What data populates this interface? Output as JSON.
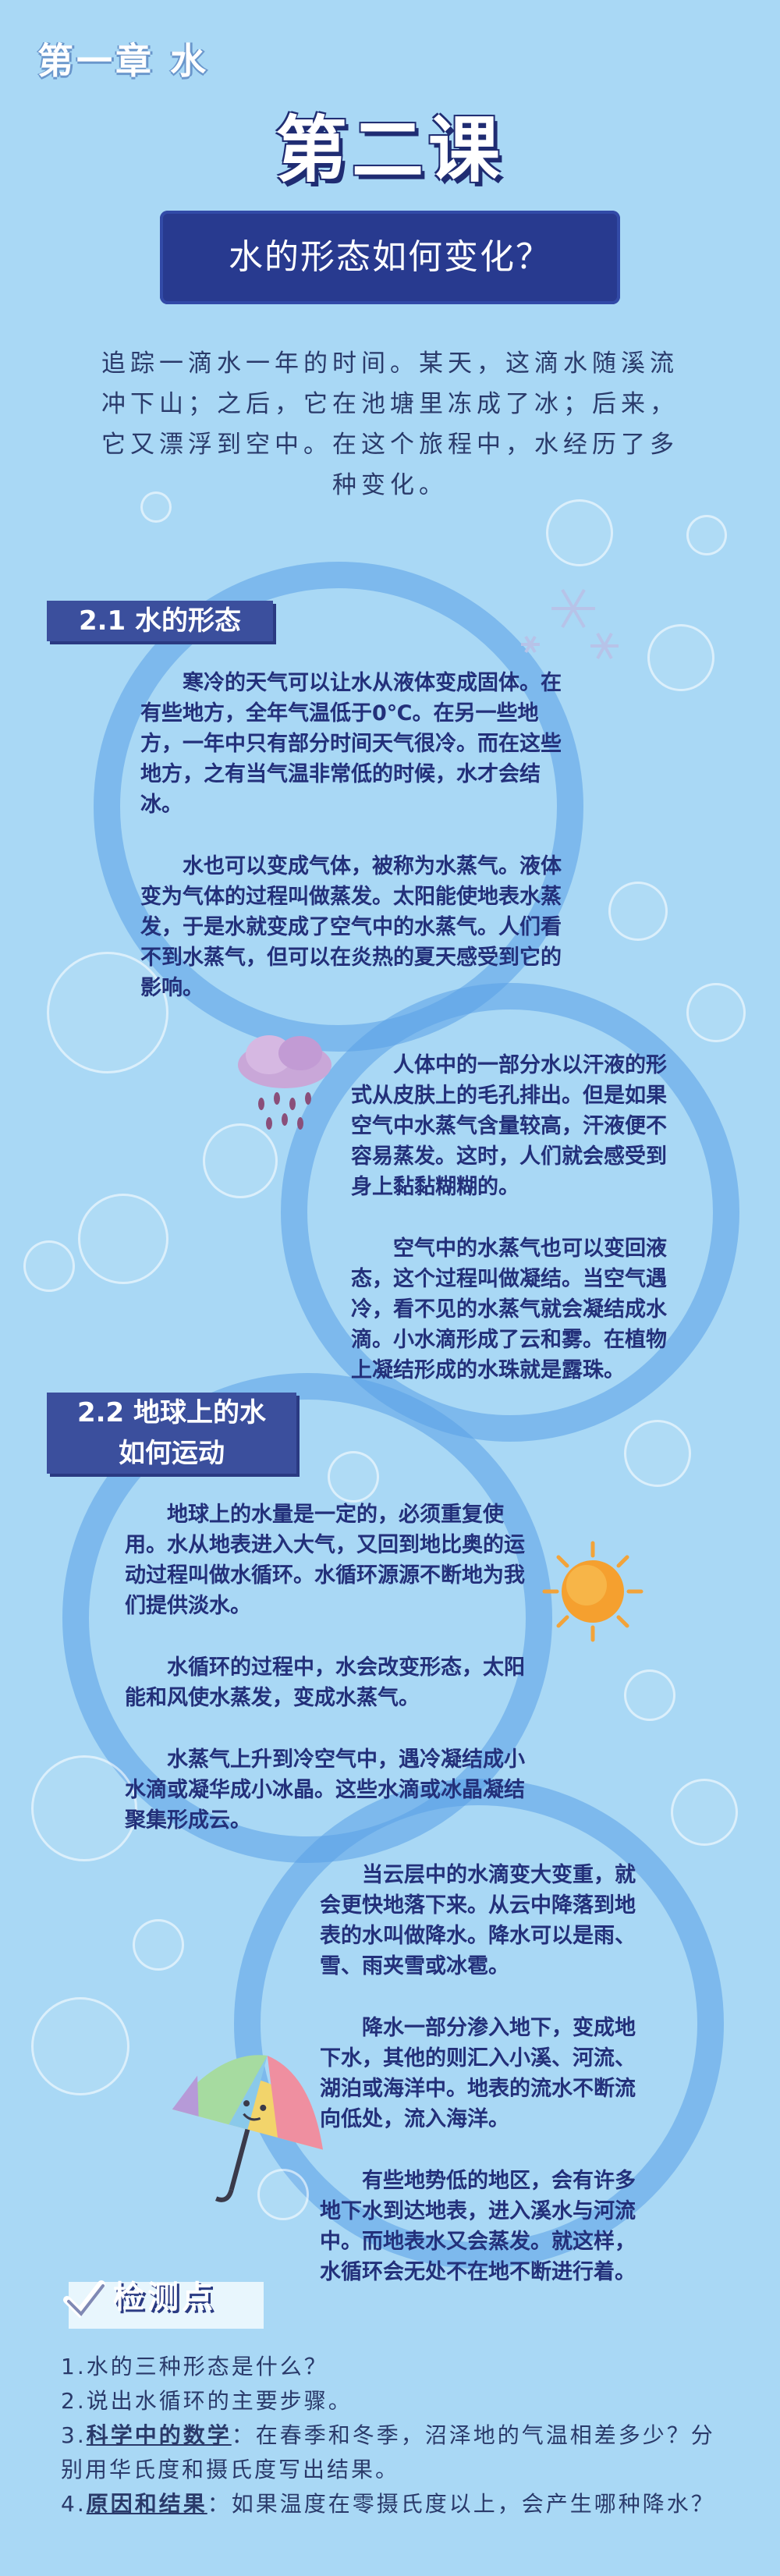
{
  "header": {
    "chapter": "第一章 水",
    "lesson": "第二课",
    "title": "水的形态如何变化？"
  },
  "intro": "追踪一滴水一年的时间。某天，这滴水随溪流冲下山；之后，它在池塘里冻成了冰；后来，它又漂浮到空中。在这个旅程中，水经历了多种变化。",
  "section1": {
    "tag": "2.1 水的形态",
    "p1": "寒冷的天气可以让水从液体变成固体。在有些地方，全年气温低于0℃。在另一些地方，一年中只有部分时间天气很冷。而在这些地方，之有当气温非常低的时候，水才会结冰。",
    "p2": "水也可以变成气体，被称为水蒸气。液体变为气体的过程叫做蒸发。太阳能使地表水蒸发，于是水就变成了空气中的水蒸气。人们看不到水蒸气，但可以在炎热的夏天感受到它的影响。",
    "p3": "人体中的一部分水以汗液的形式从皮肤上的毛孔排出。但是如果空气中水蒸气含量较高，汗液便不容易蒸发。这时，人们就会感受到身上黏黏糊糊的。",
    "p4": "空气中的水蒸气也可以变回液态，这个过程叫做凝结。当空气遇冷，看不见的水蒸气就会凝结成水滴。小水滴形成了云和雾。在植物上凝结形成的水珠就是露珠。"
  },
  "section2": {
    "tag_line1": "2.2 地球上的水",
    "tag_line2": "如何运动",
    "p1": "地球上的水量是一定的，必须重复使用。水从地表进入大气，又回到地比奥的运动过程叫做水循环。水循环源源不断地为我们提供淡水。",
    "p2": "水循环的过程中，水会改变形态，太阳能和风使水蒸发，变成水蒸气。",
    "p3": "水蒸气上升到冷空气中，遇冷凝结成小水滴或凝华成小冰晶。这些水滴或冰晶凝结聚集形成云。",
    "p4": "当云层中的水滴变大变重，就会更快地落下来。从云中降落到地表的水叫做降水。降水可以是雨、雪、雨夹雪或冰雹。",
    "p5": "降水一部分渗入地下，变成地下水，其他的则汇入小溪、河流、湖泊或海洋中。地表的流水不断流向低处，流入海洋。",
    "p6": "有些地势低的地区，会有许多地下水到达地表，进入溪水与河流中。而地表水又会蒸发。就这样，水循环会无处不在地不断进行着。"
  },
  "check": {
    "title": "检测点",
    "q1": "1.水的三种形态是什么？",
    "q2": "2.说出水循环的主要步骤。",
    "q3_num": "3.",
    "q3_label": "科学中的数学",
    "q3_text": "：在春季和冬季，沼泽地的气温相差多少？分别用华氏度和摄氏度写出结果。",
    "q4_num": "4.",
    "q4_label": "原因和结果",
    "q4_text": "：如果温度在零摄氏度以上，会产生哪种降水？"
  },
  "colors": {
    "background": "#a9d8f5",
    "navy": "#283a8f",
    "tag": "#3b4f9d",
    "text": "#23307a"
  },
  "icons": [
    "snowflake-icon",
    "rain-cloud-icon",
    "sun-icon",
    "umbrella-icon",
    "checkmark-icon"
  ]
}
